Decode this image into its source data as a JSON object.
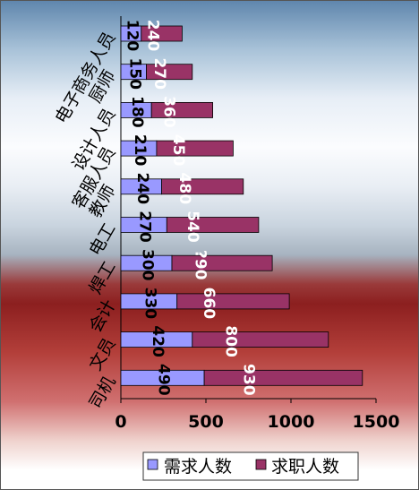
{
  "chart_data": {
    "type": "bar",
    "orientation": "horizontal",
    "stacked": true,
    "categories": [
      "电子商务人员",
      "厨师",
      "设计人员",
      "客服人员",
      "教师",
      "电工",
      "焊工",
      "会计",
      "文员",
      "司机"
    ],
    "series": [
      {
        "name": "需求人数",
        "values": [
          120,
          150,
          180,
          210,
          240,
          270,
          300,
          330,
          420,
          490
        ],
        "color": "#9999ff"
      },
      {
        "name": "求职人数",
        "values": [
          240,
          270,
          360,
          450,
          480,
          540,
          590,
          660,
          800,
          930
        ],
        "color": "#993366"
      }
    ],
    "data_label_text": {
      "需求人数": [
        "120",
        "150",
        "180",
        "210",
        "240",
        "270",
        "300",
        "330",
        "420",
        "490"
      ],
      "求职人数": [
        "240",
        "270",
        "360",
        "450",
        "480",
        "540",
        "?90",
        "660",
        "800",
        "930"
      ]
    },
    "xlim": [
      0,
      1500
    ],
    "xticks": [
      "0",
      "500",
      "1000",
      "1500"
    ],
    "title": "",
    "xlabel": "",
    "ylabel": "",
    "grid": false,
    "legend_position": "bottom"
  }
}
